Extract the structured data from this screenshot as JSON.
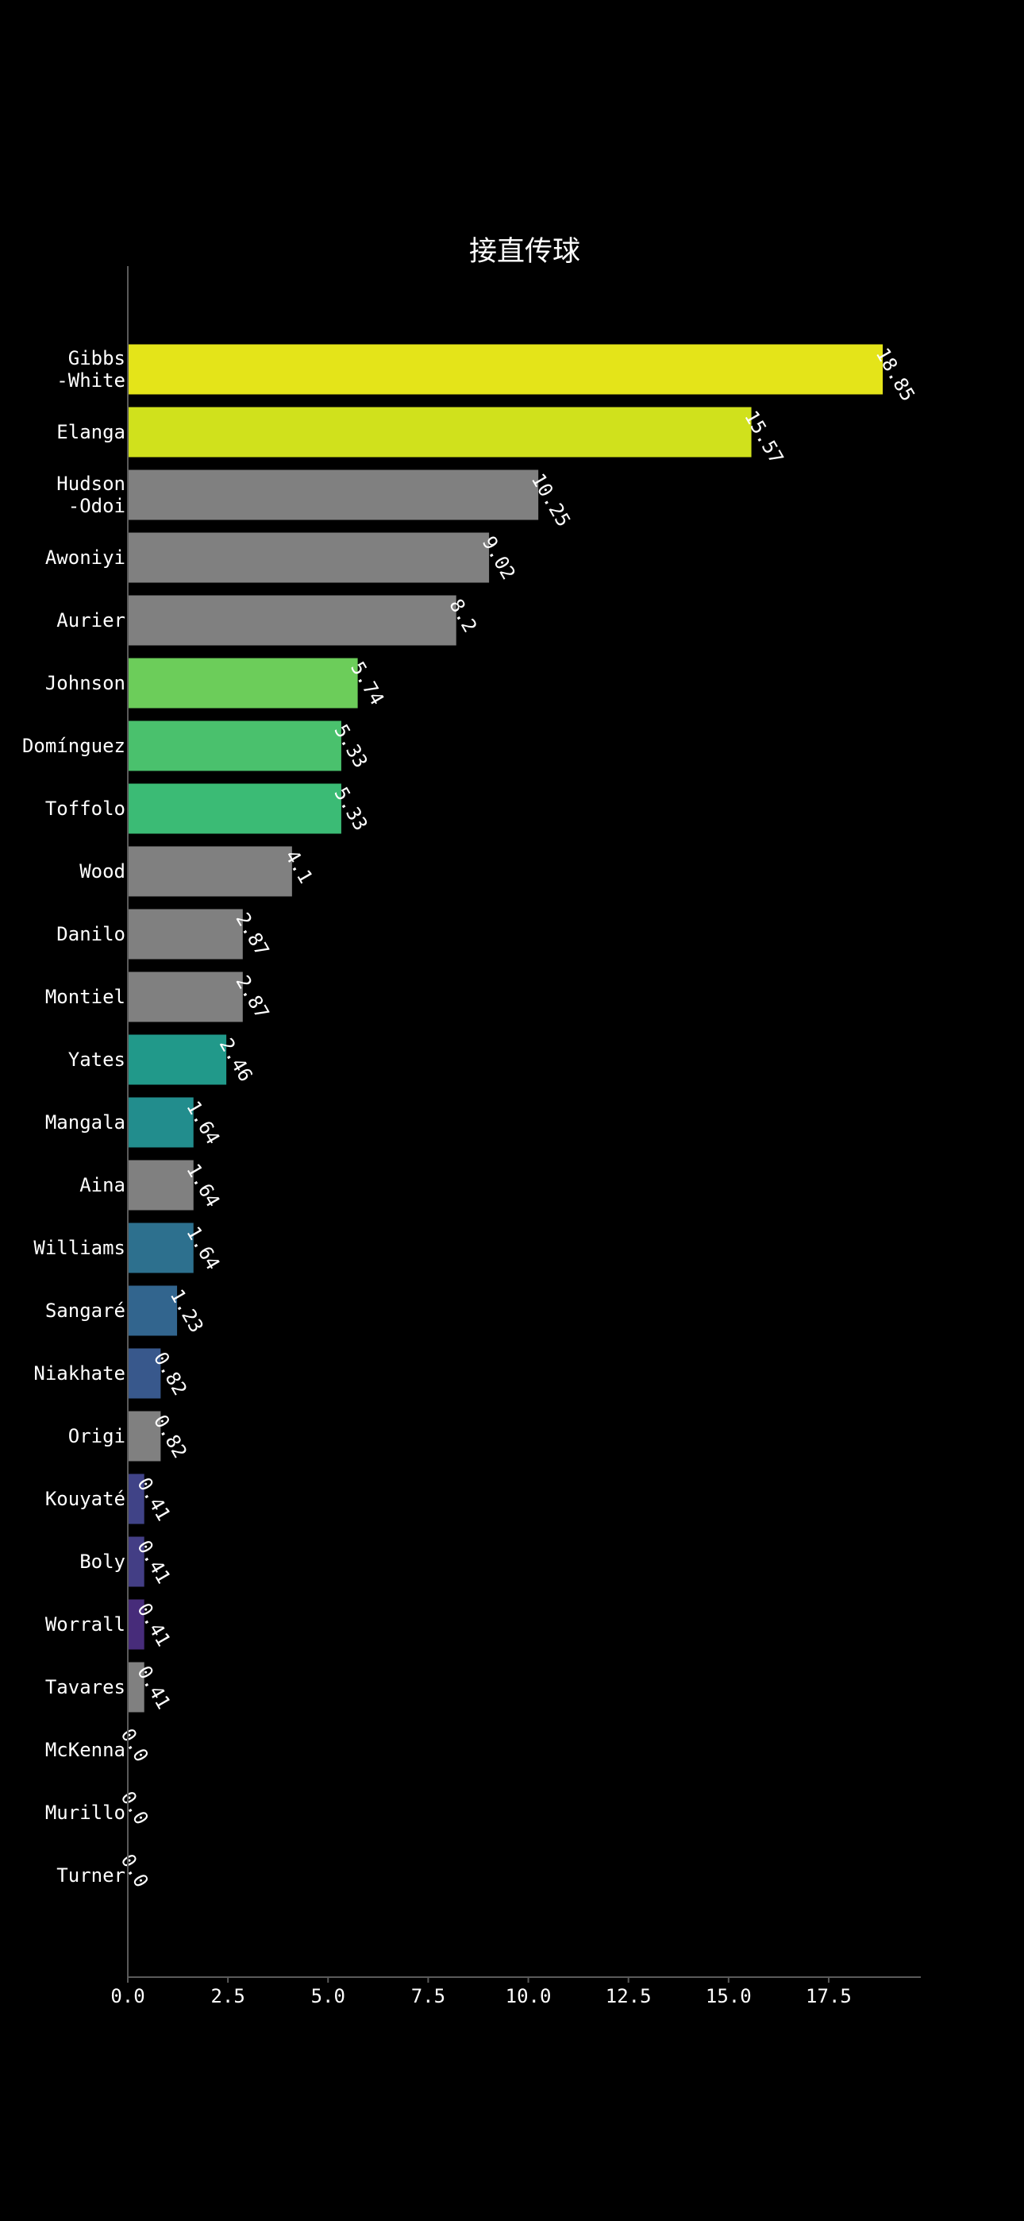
{
  "chart_data": {
    "type": "bar",
    "orientation": "horizontal",
    "title": "接直传球",
    "xlabel": "",
    "ylabel": "",
    "xlim": [
      0,
      19.8
    ],
    "xticks": [
      0.0,
      2.5,
      5.0,
      7.5,
      10.0,
      12.5,
      15.0,
      17.5
    ],
    "xtick_labels": [
      "0.0",
      "2.5",
      "5.0",
      "7.5",
      "10.0",
      "12.5",
      "15.0",
      "17.5"
    ],
    "grid": false,
    "legend": "none",
    "background": "#000000",
    "categories": [
      [
        "Gibbs",
        "-White"
      ],
      [
        "Elanga"
      ],
      [
        "Hudson",
        "-Odoi"
      ],
      [
        "Awoniyi"
      ],
      [
        "Aurier"
      ],
      [
        "Johnson"
      ],
      [
        "Domínguez"
      ],
      [
        "Toffolo"
      ],
      [
        "Wood"
      ],
      [
        "Danilo"
      ],
      [
        "Montiel"
      ],
      [
        "Yates"
      ],
      [
        "Mangala"
      ],
      [
        "Aina"
      ],
      [
        "Williams"
      ],
      [
        "Sangaré"
      ],
      [
        "Niakhate"
      ],
      [
        "Origi"
      ],
      [
        "Kouyaté"
      ],
      [
        "Boly"
      ],
      [
        "Worrall"
      ],
      [
        "Tavares"
      ],
      [
        "McKenna"
      ],
      [
        "Murillo"
      ],
      [
        "Turner"
      ]
    ],
    "values": [
      18.85,
      15.57,
      10.25,
      9.02,
      8.2,
      5.74,
      5.33,
      5.33,
      4.1,
      2.87,
      2.87,
      2.46,
      1.64,
      1.64,
      1.64,
      1.23,
      0.82,
      0.82,
      0.41,
      0.41,
      0.41,
      0.41,
      0.0,
      0.0,
      0.0
    ],
    "value_labels": [
      "18.85",
      "15.57",
      "10.25",
      "9.02",
      "8.2",
      "5.74",
      "5.33",
      "5.33",
      "4.1",
      "2.87",
      "2.87",
      "2.46",
      "1.64",
      "1.64",
      "1.64",
      "1.23",
      "0.82",
      "0.82",
      "0.41",
      "0.41",
      "0.41",
      "0.41",
      "0.0",
      "0.0",
      "0.0"
    ],
    "colors": [
      "#e4e419",
      "#d0e11c",
      "#808080",
      "#808080",
      "#808080",
      "#6ccd5a",
      "#4ac16d",
      "#3bbb75",
      "#808080",
      "#808080",
      "#808080",
      "#21998a",
      "#228d8d",
      "#808080",
      "#2d708e",
      "#32658e",
      "#38588c",
      "#808080",
      "#404387",
      "#433e85",
      "#472c7a",
      "#808080",
      "#440154",
      "#440154",
      "#440154"
    ]
  }
}
